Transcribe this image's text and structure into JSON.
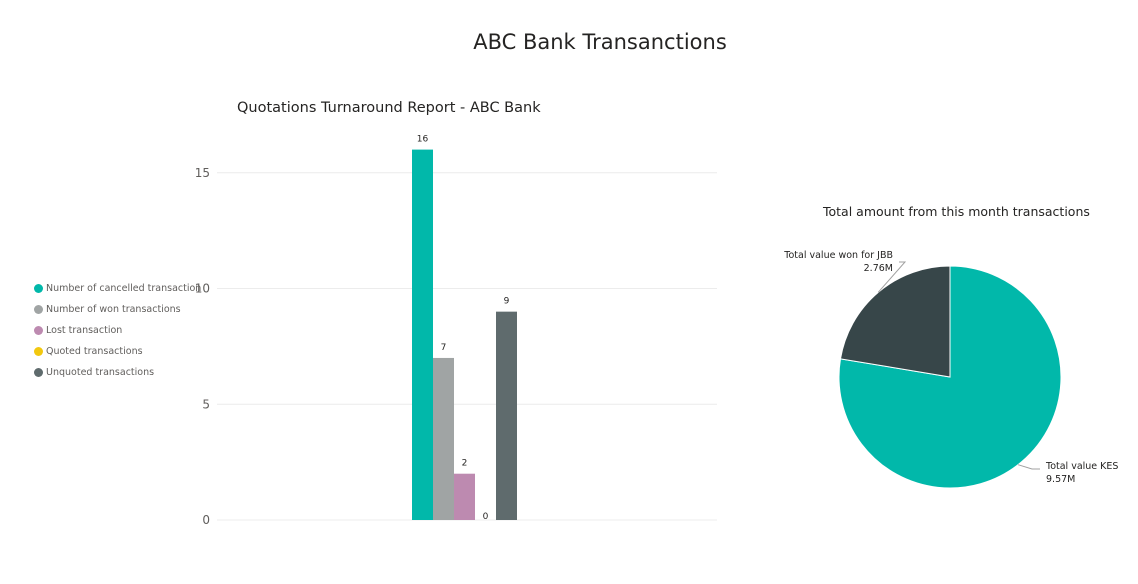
{
  "page": {
    "title": "ABC Bank Transanctions"
  },
  "chart_data": [
    {
      "type": "bar",
      "title": "Quotations Turnaround Report - ABC Bank",
      "xlabel": "",
      "ylabel": "",
      "ylim": [
        0,
        17.5
      ],
      "yticks": [
        0,
        5,
        10,
        15
      ],
      "grid": true,
      "legend_position": "left",
      "series": [
        {
          "name": "Number of cancelled transaction",
          "value": 16,
          "color": "#01B8AA"
        },
        {
          "name": "Number of won transactions",
          "value": 7,
          "color": "#A0A4A4"
        },
        {
          "name": "Lost transaction",
          "value": 2,
          "color": "#BD8AB0"
        },
        {
          "name": "Quoted transactions",
          "value": 0,
          "color": "#F2C80F"
        },
        {
          "name": "Unquoted transactions",
          "value": 9,
          "color": "#5F6B6D"
        }
      ]
    },
    {
      "type": "pie",
      "title": "Total amount from this month transactions",
      "slices": [
        {
          "label": "Total value KES",
          "value_label": "9.57M",
          "value": 9.57,
          "color": "#01B8AA"
        },
        {
          "label": "Total value won for JBB",
          "value_label": "2.76M",
          "value": 2.76,
          "color": "#374649"
        }
      ]
    }
  ]
}
